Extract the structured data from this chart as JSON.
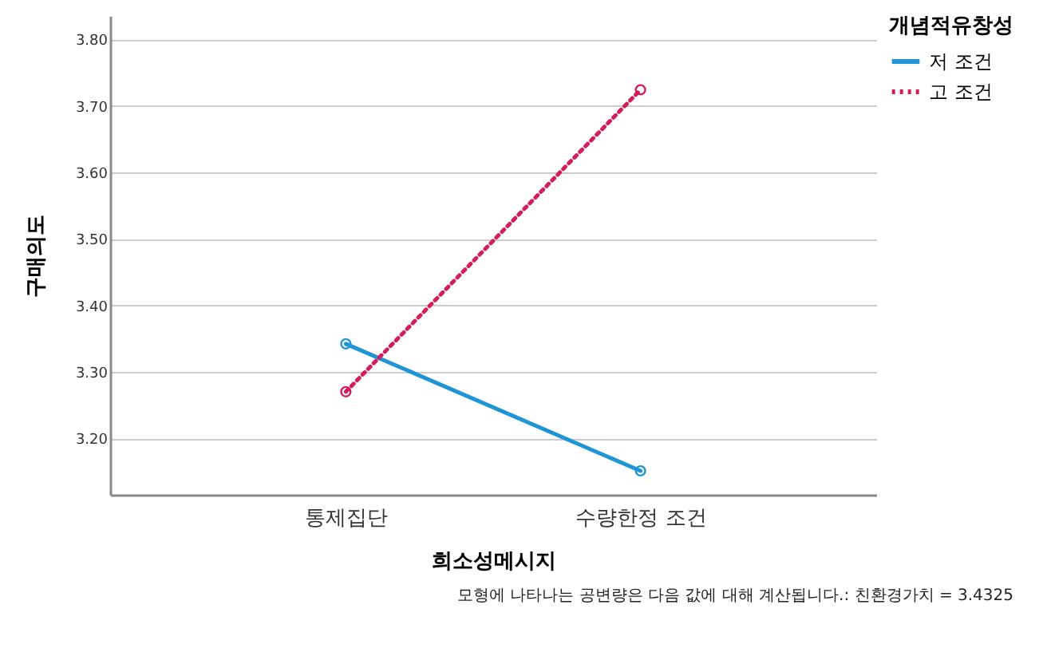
{
  "chart_data": {
    "type": "line",
    "xlabel": "희소성메시지",
    "ylabel": "구매의도",
    "legend_title": "개념적유창성",
    "categories": [
      "통제집단",
      "수량한정 조건"
    ],
    "series": [
      {
        "name": "저 조건",
        "color": "#1f95d8",
        "values": [
          3.342,
          3.151
        ],
        "line_style": "solid"
      },
      {
        "name": "고 조건",
        "color": "#d41e5c",
        "values": [
          3.27,
          3.724
        ],
        "line_style": "dotted"
      }
    ],
    "ylim": [
      3.115,
      3.835
    ],
    "yticks": [
      {
        "value": 3.2,
        "label": "3.20"
      },
      {
        "value": 3.3,
        "label": "3.30"
      },
      {
        "value": 3.4,
        "label": "3.40"
      },
      {
        "value": 3.5,
        "label": "3.50"
      },
      {
        "value": 3.6,
        "label": "3.60"
      },
      {
        "value": 3.7,
        "label": "3.70"
      },
      {
        "value": 3.8,
        "label": "3.80"
      }
    ],
    "grid": "y",
    "legend": "top right",
    "marker": "circle",
    "annotations": [
      "모형에 나타나는 공변량은 다음 값에 대해 계산됩니다.: 친환경가치 = 3.4325"
    ]
  }
}
